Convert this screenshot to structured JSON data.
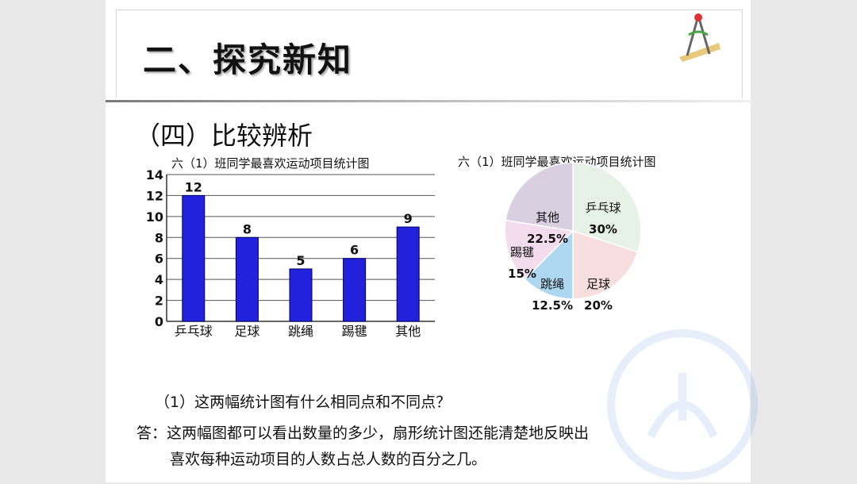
{
  "slide": {
    "title": "二、探究新知",
    "subtitle": "（四）比较辨析",
    "question": "（1）这两幅统计图有什么相同点和不同点？",
    "answer_line1": "答：这两幅图都可以看出数量的多少，扇形统计图还能清楚地反映出",
    "answer_line2": "喜欢每种运动项目的人数占总人数的百分之几。"
  },
  "colors": {
    "bar": "#2222dd",
    "pie_tabletennis": "#e6f2e6",
    "pie_football": "#f8dede",
    "pie_jumprope": "#aed8f2",
    "pie_shuttlecock": "#f4dcef",
    "pie_other": "#d9cfe0"
  },
  "chart_data": [
    {
      "type": "bar",
      "title": "六（1）班同学最喜欢运动项目统计图",
      "categories": [
        "乒乓球",
        "足球",
        "跳绳",
        "踢毽",
        "其他"
      ],
      "values": [
        12,
        8,
        5,
        6,
        9
      ],
      "ylim": [
        0,
        14
      ],
      "yticks": [
        "0",
        "2",
        "4",
        "6",
        "8",
        "10",
        "12",
        "14"
      ],
      "grid": true
    },
    {
      "type": "pie",
      "title": "六（1）班同学最喜欢运动项目统计图",
      "labels": [
        "乒乓球",
        "足球",
        "跳绳",
        "踢毽",
        "其他"
      ],
      "values": [
        30,
        20,
        12.5,
        15,
        22.5
      ],
      "percent_labels": [
        "30%",
        "20%",
        "12.5%",
        "15%",
        "22.5%"
      ]
    }
  ]
}
